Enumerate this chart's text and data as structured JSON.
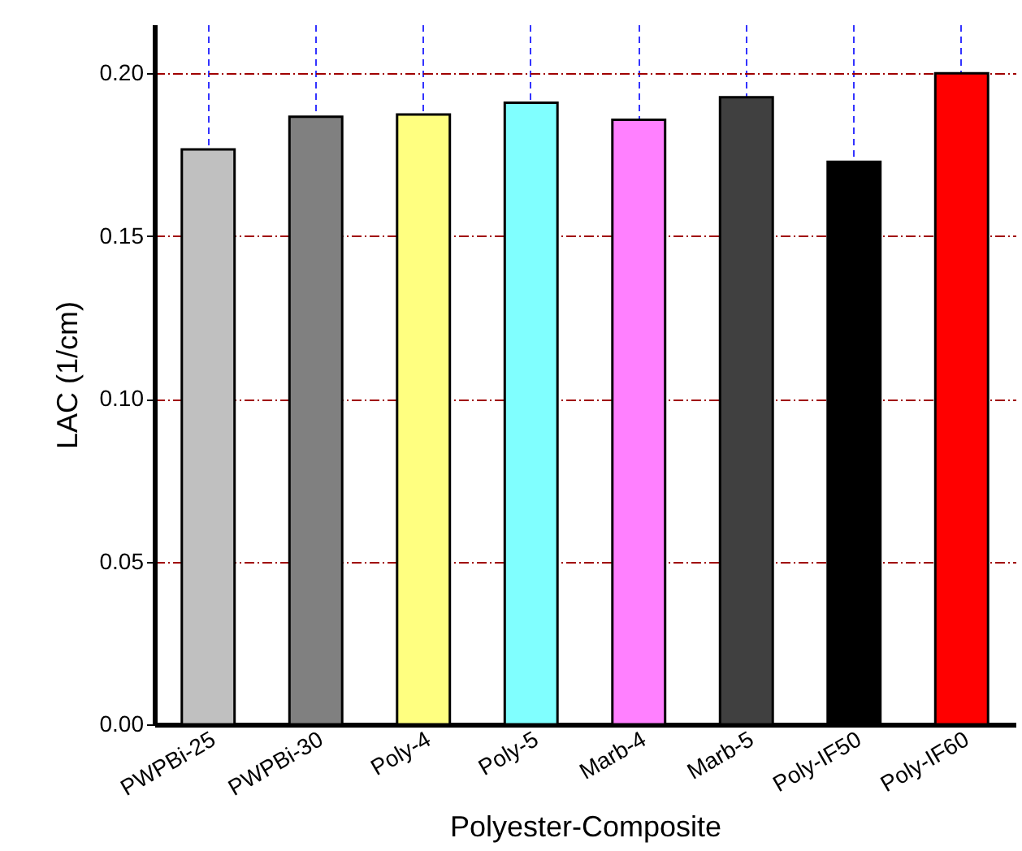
{
  "chart_data": {
    "type": "bar",
    "xlabel": "Polyester-Composite",
    "ylabel": "LAC (1/cm)",
    "categories": [
      "PWPBi-25",
      "PWPBi-30",
      "Poly-4",
      "Poly-5",
      "Marb-4",
      "Marb-5",
      "Poly-IF50",
      "Poly-IF60"
    ],
    "values": [
      0.1766,
      0.1866,
      0.1873,
      0.1909,
      0.1857,
      0.1926,
      0.1728,
      0.2
    ],
    "colors": [
      "#c0c0c0",
      "#808080",
      "#ffff80",
      "#80ffff",
      "#ff80ff",
      "#404040",
      "#000000",
      "#ff0000"
    ],
    "ylim": [
      0,
      0.215
    ],
    "yticks": [
      {
        "value": 0,
        "label": "0.00"
      },
      0.05,
      {
        "value": 0.1,
        "label": "0.10"
      },
      0.15,
      {
        "value": 0.2,
        "label": "0.20"
      }
    ],
    "grid": true
  }
}
